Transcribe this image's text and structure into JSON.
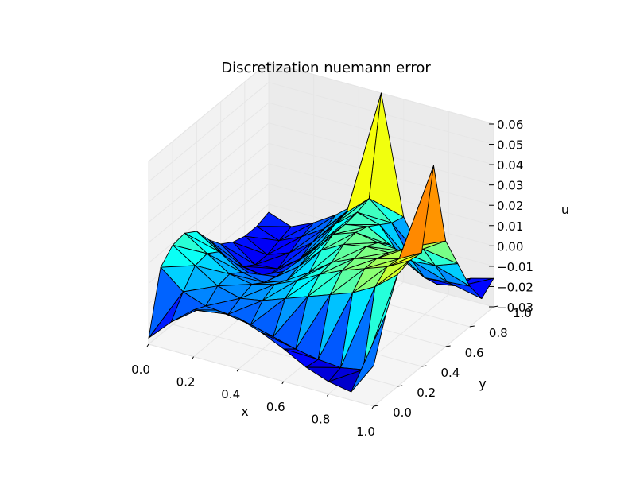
{
  "chart_data": {
    "type": "surface3d",
    "title": "Discretization nuemann error",
    "xlabel": "x",
    "ylabel": "y",
    "zlabel": "u",
    "xlim": [
      0.0,
      1.0
    ],
    "ylim": [
      0.0,
      1.0
    ],
    "zlim": [
      -0.03,
      0.06
    ],
    "x_ticks": [
      "0.0",
      "0.2",
      "0.4",
      "0.6",
      "0.8",
      "1.0"
    ],
    "y_ticks": [
      "0.0",
      "0.2",
      "0.4",
      "0.6",
      "0.8",
      "1.0"
    ],
    "z_ticks": [
      "−0.03",
      "−0.02",
      "−0.01",
      "0.00",
      "0.01",
      "0.02",
      "0.03",
      "0.04",
      "0.05",
      "0.06"
    ],
    "colormap": "jet",
    "grid": true,
    "grid_x": [
      0.0,
      0.1,
      0.2,
      0.3,
      0.4,
      0.5,
      0.6,
      0.7,
      0.8,
      0.9,
      1.0
    ],
    "grid_y": [
      0.0,
      0.1,
      0.2,
      0.3,
      0.4,
      0.5,
      0.6,
      0.7,
      0.8,
      0.9,
      1.0
    ],
    "z": [
      [
        -0.027,
        -0.016,
        -0.007,
        -0.004,
        -0.005,
        -0.009,
        -0.014,
        -0.02,
        -0.024,
        -0.026,
        -0.01
      ],
      [
        0.003,
        -0.006,
        -0.01,
        -0.011,
        -0.013,
        -0.016,
        -0.019,
        -0.021,
        -0.022,
        -0.02,
        0.01
      ],
      [
        0.009,
        0.002,
        -0.005,
        -0.008,
        -0.006,
        -0.002,
        0.002,
        0.006,
        0.01,
        0.016,
        0.025
      ],
      [
        0.01,
        0.003,
        -0.004,
        -0.006,
        -0.003,
        0.002,
        0.008,
        0.013,
        0.017,
        0.021,
        0.027
      ],
      [
        0.006,
        -0.001,
        -0.008,
        -0.01,
        -0.006,
        0.001,
        0.009,
        0.014,
        0.017,
        0.02,
        0.026
      ],
      [
        -0.003,
        -0.011,
        -0.015,
        -0.012,
        -0.004,
        0.007,
        0.013,
        0.015,
        0.015,
        0.021,
        0.064
      ],
      [
        -0.01,
        -0.018,
        -0.02,
        -0.014,
        -0.002,
        0.01,
        0.014,
        0.012,
        0.011,
        0.015,
        0.022
      ],
      [
        -0.014,
        -0.022,
        -0.021,
        -0.013,
        -0.001,
        0.01,
        0.012,
        0.006,
        0.001,
        0.002,
        0.006
      ],
      [
        -0.016,
        -0.022,
        -0.018,
        -0.01,
        0.002,
        0.011,
        0.008,
        -0.006,
        -0.012,
        -0.011,
        -0.01
      ],
      [
        -0.016,
        -0.02,
        -0.015,
        -0.008,
        0.003,
        0.013,
        0.004,
        -0.014,
        -0.02,
        -0.018,
        -0.021
      ],
      [
        -0.014,
        -0.018,
        -0.013,
        -0.006,
        0.003,
        0.06,
        0.002,
        -0.018,
        -0.025,
        -0.019,
        -0.016
      ]
    ]
  }
}
